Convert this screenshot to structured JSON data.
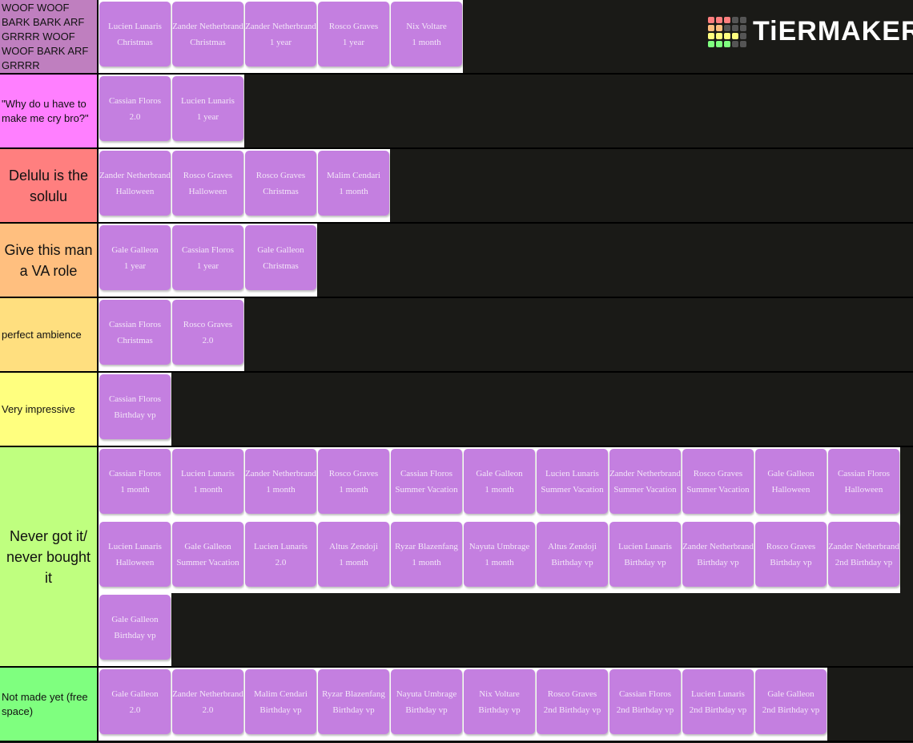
{
  "logo": "TiERMAKER",
  "tiers": [
    {
      "label": "WOOF WOOF BARK BARK ARF GRRRR WOOF WOOF BARK ARF GRRRR",
      "items": [
        {
          "name": "Lucien Lunaris",
          "variant": "Christmas"
        },
        {
          "name": "Zander Netherbrand",
          "variant": "Christmas"
        },
        {
          "name": "Zander Netherbrand",
          "variant": "1 year"
        },
        {
          "name": "Rosco Graves",
          "variant": "1 year"
        },
        {
          "name": "Nix Voltare",
          "variant": "1 month"
        }
      ]
    },
    {
      "label": "\"Why do u have to make me cry bro?\"",
      "items": [
        {
          "name": "Cassian Floros",
          "variant": "2.0"
        },
        {
          "name": "Lucien Lunaris",
          "variant": "1 year"
        }
      ]
    },
    {
      "label": "Delulu is the solulu",
      "items": [
        {
          "name": "Zander Netherbrand",
          "variant": "Halloween"
        },
        {
          "name": "Rosco Graves",
          "variant": "Halloween"
        },
        {
          "name": "Rosco Graves",
          "variant": "Christmas"
        },
        {
          "name": "Malim Cendari",
          "variant": "1 month"
        }
      ]
    },
    {
      "label": "Give this man a VA role",
      "items": [
        {
          "name": "Gale Galleon",
          "variant": "1 year"
        },
        {
          "name": "Cassian Floros",
          "variant": "1 year"
        },
        {
          "name": "Gale Galleon",
          "variant": "Christmas"
        }
      ]
    },
    {
      "label": "perfect ambience",
      "items": [
        {
          "name": "Cassian Floros",
          "variant": "Christmas"
        },
        {
          "name": "Rosco Graves",
          "variant": "2.0"
        }
      ]
    },
    {
      "label": "Very impressive",
      "items": [
        {
          "name": "Cassian Floros",
          "variant": "Birthday vp"
        }
      ]
    },
    {
      "label": "Never got it/ never bought it",
      "items": [
        {
          "name": "Cassian Floros",
          "variant": "1 month"
        },
        {
          "name": "Lucien Lunaris",
          "variant": "1 month"
        },
        {
          "name": "Zander Netherbrand",
          "variant": "1 month"
        },
        {
          "name": "Rosco Graves",
          "variant": "1 month"
        },
        {
          "name": "Cassian Floros",
          "variant": "Summer Vacation"
        },
        {
          "name": "Gale Galleon",
          "variant": "1 month"
        },
        {
          "name": "Lucien Lunaris",
          "variant": "Summer Vacation"
        },
        {
          "name": "Zander Netherbrand",
          "variant": "Summer Vacation"
        },
        {
          "name": "Rosco Graves",
          "variant": "Summer Vacation"
        },
        {
          "name": "Gale Galleon",
          "variant": "Halloween"
        },
        {
          "name": "Cassian Floros",
          "variant": "Halloween"
        },
        {
          "name": "Lucien Lunaris",
          "variant": "Halloween"
        },
        {
          "name": "Gale Galleon",
          "variant": "Summer Vacation"
        },
        {
          "name": "Lucien Lunaris",
          "variant": "2.0"
        },
        {
          "name": "Altus Zendoji",
          "variant": "1 month"
        },
        {
          "name": "Ryzar Blazenfang",
          "variant": "1 month"
        },
        {
          "name": "Nayuta Umbrage",
          "variant": "1 month"
        },
        {
          "name": "Altus Zendoji",
          "variant": "Birthday vp"
        },
        {
          "name": "Lucien Lunaris",
          "variant": "Birthday vp"
        },
        {
          "name": "Zander Netherbrand",
          "variant": "Birthday vp"
        },
        {
          "name": "Rosco Graves",
          "variant": "Birthday vp"
        },
        {
          "name": "Zander Netherbrand",
          "variant": "2nd Birthday vp"
        },
        {
          "name": "Gale Galleon",
          "variant": "Birthday vp"
        }
      ]
    },
    {
      "label": "Not made yet (free space)",
      "items": [
        {
          "name": "Gale Galleon",
          "variant": "2.0"
        },
        {
          "name": "Zander Netherbrand",
          "variant": "2.0"
        },
        {
          "name": "Malim Cendari",
          "variant": "Birthday vp"
        },
        {
          "name": "Ryzar Blazenfang",
          "variant": "Birthday vp"
        },
        {
          "name": "Nayuta Umbrage",
          "variant": "Birthday vp"
        },
        {
          "name": "Nix Voltare",
          "variant": "Birthday vp"
        },
        {
          "name": "Rosco Graves",
          "variant": "2nd Birthday vp"
        },
        {
          "name": "Cassian Floros",
          "variant": "2nd Birthday vp"
        },
        {
          "name": "Lucien Lunaris",
          "variant": "2nd Birthday vp"
        },
        {
          "name": "Gale Galleon",
          "variant": "2nd Birthday vp"
        }
      ]
    }
  ]
}
